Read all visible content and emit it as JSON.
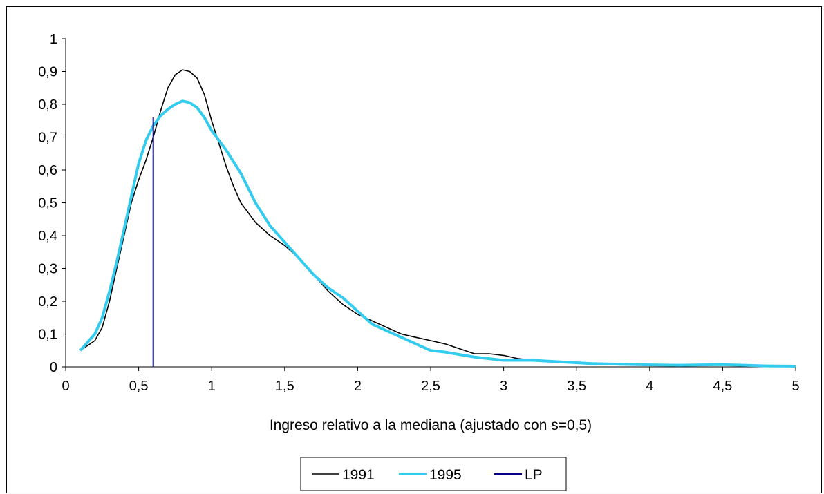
{
  "chart_data": {
    "type": "line",
    "title": "",
    "xlabel": "Ingreso relativo a la mediana (ajustado con s=0,5)",
    "ylabel": "",
    "xlim": [
      0,
      5
    ],
    "ylim": [
      0,
      1
    ],
    "x_ticks": [
      "0",
      "0,5",
      "1",
      "1,5",
      "2",
      "2,5",
      "3",
      "3,5",
      "4",
      "4,5",
      "5"
    ],
    "y_ticks": [
      "0",
      "0,1",
      "0,2",
      "0,3",
      "0,4",
      "0,5",
      "0,6",
      "0,7",
      "0,8",
      "0,9",
      "1"
    ],
    "grid": false,
    "legend_position": "bottom",
    "series": [
      {
        "name": "1991",
        "color": "#000000",
        "x": [
          0.1,
          0.2,
          0.25,
          0.3,
          0.35,
          0.4,
          0.45,
          0.5,
          0.55,
          0.6,
          0.65,
          0.7,
          0.75,
          0.8,
          0.85,
          0.9,
          0.95,
          1.0,
          1.05,
          1.1,
          1.15,
          1.2,
          1.3,
          1.4,
          1.5,
          1.6,
          1.7,
          1.8,
          1.9,
          2.0,
          2.1,
          2.2,
          2.3,
          2.4,
          2.5,
          2.6,
          2.7,
          2.8,
          2.9,
          3.0,
          3.1,
          3.2,
          3.4,
          3.6,
          3.8,
          4.0,
          4.2,
          4.5,
          4.8,
          5.0
        ],
        "values": [
          0.05,
          0.08,
          0.12,
          0.2,
          0.3,
          0.4,
          0.5,
          0.57,
          0.63,
          0.7,
          0.78,
          0.85,
          0.89,
          0.905,
          0.9,
          0.88,
          0.83,
          0.75,
          0.68,
          0.61,
          0.55,
          0.5,
          0.44,
          0.4,
          0.37,
          0.33,
          0.28,
          0.23,
          0.19,
          0.16,
          0.14,
          0.12,
          0.1,
          0.09,
          0.08,
          0.07,
          0.055,
          0.04,
          0.04,
          0.035,
          0.025,
          0.02,
          0.015,
          0.01,
          0.008,
          0.007,
          0.006,
          0.005,
          0.003,
          0.002
        ]
      },
      {
        "name": "1995",
        "color": "#33CCEE",
        "x": [
          0.1,
          0.2,
          0.25,
          0.3,
          0.35,
          0.4,
          0.45,
          0.5,
          0.55,
          0.6,
          0.65,
          0.7,
          0.75,
          0.8,
          0.85,
          0.9,
          0.95,
          1.0,
          1.05,
          1.1,
          1.2,
          1.3,
          1.4,
          1.5,
          1.6,
          1.7,
          1.8,
          1.9,
          2.0,
          2.1,
          2.2,
          2.3,
          2.4,
          2.5,
          2.6,
          2.8,
          3.0,
          3.2,
          3.4,
          3.6,
          3.8,
          4.0,
          4.2,
          4.5,
          4.8,
          5.0
        ],
        "values": [
          0.05,
          0.1,
          0.15,
          0.23,
          0.32,
          0.42,
          0.52,
          0.62,
          0.69,
          0.735,
          0.765,
          0.785,
          0.8,
          0.81,
          0.805,
          0.79,
          0.76,
          0.72,
          0.69,
          0.66,
          0.59,
          0.5,
          0.43,
          0.38,
          0.33,
          0.28,
          0.24,
          0.21,
          0.17,
          0.13,
          0.11,
          0.09,
          0.07,
          0.05,
          0.045,
          0.03,
          0.02,
          0.02,
          0.015,
          0.01,
          0.008,
          0.006,
          0.005,
          0.007,
          0.003,
          0.002
        ]
      },
      {
        "name": "LP",
        "color": "#000080",
        "x": [
          0.6,
          0.6
        ],
        "values": [
          0,
          0.76
        ]
      }
    ]
  }
}
